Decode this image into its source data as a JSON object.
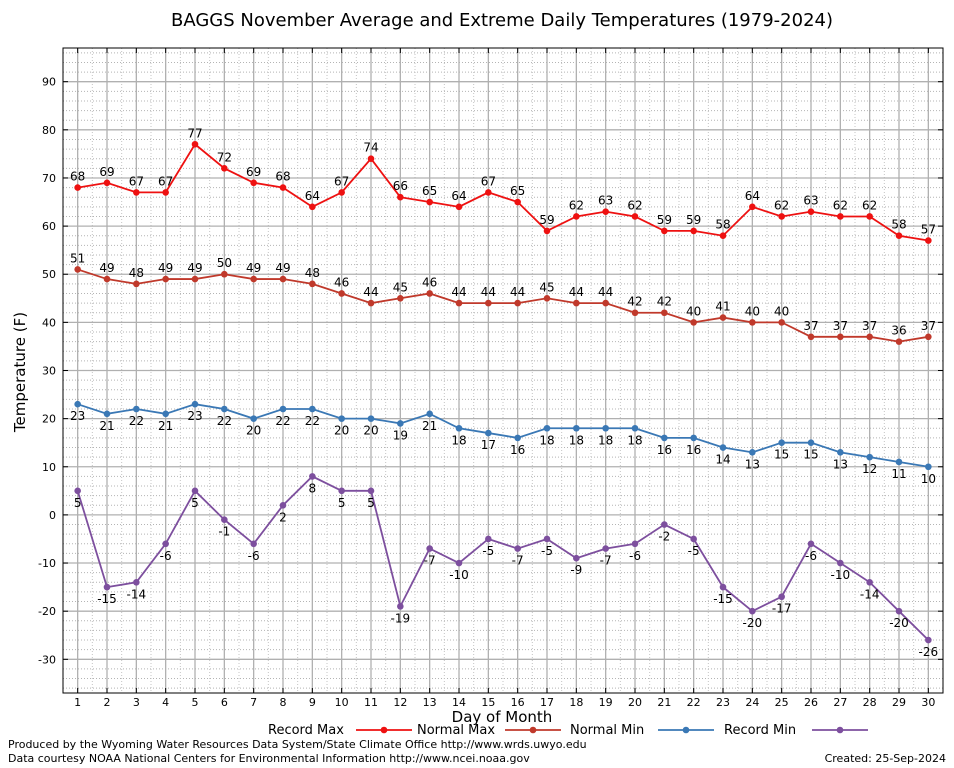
{
  "chart_data": {
    "type": "line",
    "title": "BAGGS November Average and Extreme Daily Temperatures (1979-2024)",
    "xlabel": "Day of Month",
    "ylabel": "Temperature (F)",
    "x": [
      1,
      2,
      3,
      4,
      5,
      6,
      7,
      8,
      9,
      10,
      11,
      12,
      13,
      14,
      15,
      16,
      17,
      18,
      19,
      20,
      21,
      22,
      23,
      24,
      25,
      26,
      27,
      28,
      29,
      30
    ],
    "xlim": [
      0.5,
      30.5
    ],
    "ylim": [
      -37,
      97
    ],
    "yticks": [
      -30,
      -20,
      -10,
      0,
      10,
      20,
      30,
      40,
      50,
      60,
      70,
      80,
      90
    ],
    "grid": true,
    "legend_position": "bottom",
    "series": [
      {
        "name": "Record Max",
        "color": "#ee1111",
        "label_position": "above",
        "values": [
          68,
          69,
          67,
          67,
          77,
          72,
          69,
          68,
          64,
          67,
          74,
          66,
          65,
          64,
          67,
          65,
          59,
          62,
          63,
          62,
          59,
          59,
          58,
          64,
          62,
          63,
          62,
          62,
          58,
          57
        ]
      },
      {
        "name": "Normal Max",
        "color": "#c0392b",
        "label_position": "above",
        "values": [
          51,
          49,
          48,
          49,
          49,
          50,
          49,
          49,
          48,
          46,
          44,
          45,
          46,
          44,
          44,
          44,
          45,
          44,
          44,
          42,
          42,
          40,
          41,
          40,
          40,
          37,
          37,
          37,
          36,
          37
        ]
      },
      {
        "name": "Normal Min",
        "color": "#3a78b5",
        "label_position": "below",
        "values": [
          23,
          21,
          22,
          21,
          23,
          22,
          20,
          22,
          22,
          20,
          20,
          19,
          21,
          18,
          17,
          16,
          18,
          18,
          18,
          18,
          16,
          16,
          14,
          13,
          15,
          15,
          13,
          12,
          11,
          10
        ]
      },
      {
        "name": "Record Min",
        "color": "#7d4f9e",
        "label_position": "below",
        "values": [
          5,
          -15,
          -14,
          -6,
          5,
          -1,
          -6,
          2,
          8,
          5,
          5,
          -19,
          -7,
          -10,
          -5,
          -7,
          -5,
          -9,
          -7,
          -6,
          -2,
          -5,
          -15,
          -20,
          -17,
          -6,
          -10,
          -14,
          -20,
          -26
        ]
      }
    ]
  },
  "footer": {
    "produced_by": "Produced by the Wyoming Water Resources Data System/State Climate Office http://www.wrds.uwyo.edu",
    "data_courtesy": "Data courtesy NOAA National Centers for Environmental Information http://www.ncei.noaa.gov",
    "created": "Created:  25-Sep-2024"
  }
}
